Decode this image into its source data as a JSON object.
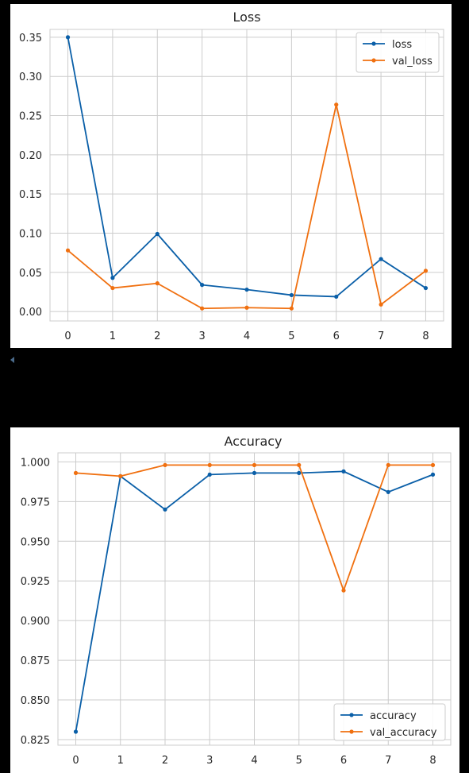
{
  "chart_data": [
    {
      "type": "line",
      "title": "Loss",
      "xlabel": "",
      "ylabel": "",
      "x": [
        0,
        1,
        2,
        3,
        4,
        5,
        6,
        7,
        8
      ],
      "xlim": [
        -0.4,
        8.4
      ],
      "ylim": [
        -0.012,
        0.36
      ],
      "yticks": [
        0.0,
        0.05,
        0.1,
        0.15,
        0.2,
        0.25,
        0.3,
        0.35
      ],
      "ytick_labels": [
        "0.00",
        "0.05",
        "0.10",
        "0.15",
        "0.20",
        "0.25",
        "0.30",
        "0.35"
      ],
      "xtick_labels": [
        "0",
        "1",
        "2",
        "3",
        "4",
        "5",
        "6",
        "7",
        "8"
      ],
      "grid": true,
      "legend_position": "top-right",
      "series": [
        {
          "name": "loss",
          "color": "#0a5fa8",
          "values": [
            0.35,
            0.043,
            0.099,
            0.034,
            0.028,
            0.021,
            0.019,
            0.067,
            0.03
          ]
        },
        {
          "name": "val_loss",
          "color": "#f07010",
          "values": [
            0.078,
            0.03,
            0.036,
            0.004,
            0.005,
            0.004,
            0.264,
            0.009,
            0.052
          ]
        }
      ]
    },
    {
      "type": "line",
      "title": "Accuracy",
      "xlabel": "",
      "ylabel": "",
      "x": [
        0,
        1,
        2,
        3,
        4,
        5,
        6,
        7,
        8
      ],
      "xlim": [
        -0.4,
        8.4
      ],
      "ylim": [
        0.8215,
        1.0057
      ],
      "yticks": [
        0.825,
        0.85,
        0.875,
        0.9,
        0.925,
        0.95,
        0.975,
        1.0
      ],
      "ytick_labels": [
        "0.825",
        "0.850",
        "0.875",
        "0.900",
        "0.925",
        "0.950",
        "0.975",
        "1.000"
      ],
      "xtick_labels": [
        "0",
        "1",
        "2",
        "3",
        "4",
        "5",
        "6",
        "7",
        "8"
      ],
      "grid": true,
      "legend_position": "bottom-right",
      "series": [
        {
          "name": "accuracy",
          "color": "#0a5fa8",
          "values": [
            0.83,
            0.991,
            0.97,
            0.992,
            0.993,
            0.993,
            0.994,
            0.981,
            0.992
          ]
        },
        {
          "name": "val_accuracy",
          "color": "#f07010",
          "values": [
            0.993,
            0.991,
            0.998,
            0.998,
            0.998,
            0.998,
            0.919,
            0.998,
            0.998
          ]
        }
      ]
    }
  ]
}
